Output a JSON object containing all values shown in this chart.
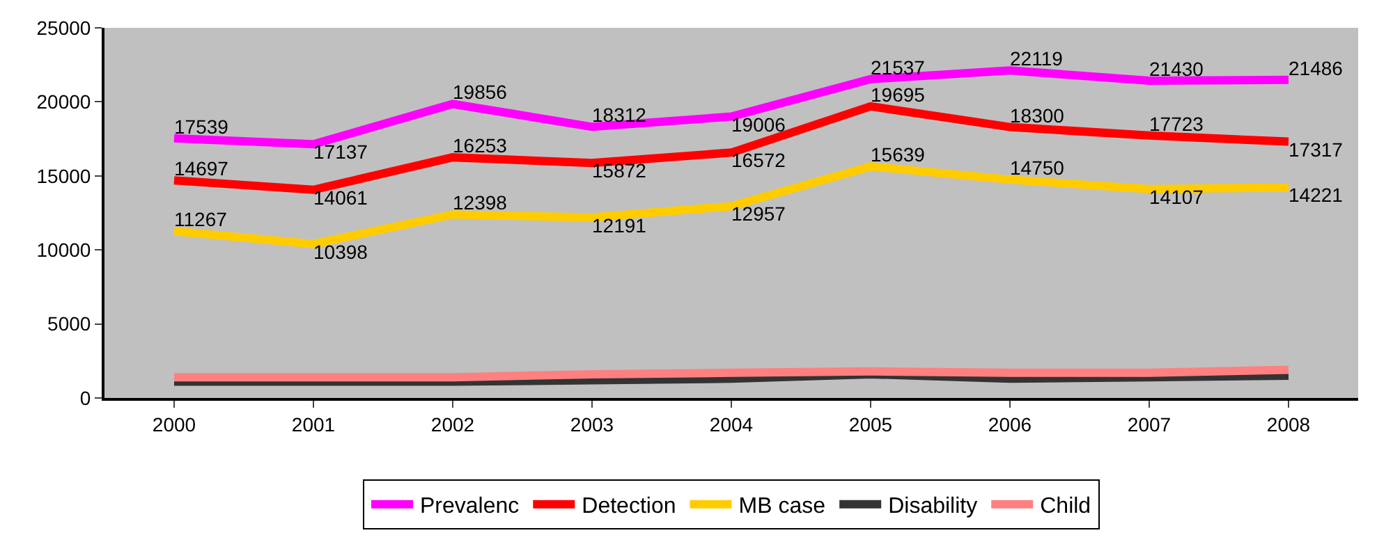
{
  "chart_data": {
    "type": "line",
    "categories": [
      "2000",
      "2001",
      "2002",
      "2003",
      "2004",
      "2005",
      "2006",
      "2007",
      "2008"
    ],
    "ylim": [
      0,
      25000
    ],
    "yticks": [
      0,
      5000,
      10000,
      15000,
      20000,
      25000
    ],
    "grid": false,
    "legend": "bottom",
    "marker": "none",
    "line_style": "solid",
    "series": [
      {
        "name": "Prevalenc",
        "color": "#ff00ff",
        "values": [
          17539,
          17137,
          19856,
          18312,
          19006,
          21537,
          22119,
          21430,
          21486
        ],
        "value_labels": [
          "17539",
          "17137",
          "19856",
          "18312",
          "19006",
          "21537",
          "22119",
          "21430",
          "21486"
        ]
      },
      {
        "name": "Detection",
        "color": "#ff0000",
        "values": [
          14697,
          14061,
          16253,
          15872,
          16572,
          19695,
          18300,
          17723,
          17317
        ],
        "value_labels": [
          "14697",
          "14061",
          "16253",
          "15872",
          "16572",
          "19695",
          "18300",
          "17723",
          "17317"
        ]
      },
      {
        "name": "MB case",
        "color": "#ffcc00",
        "values": [
          11267,
          10398,
          12398,
          12191,
          12957,
          15639,
          14750,
          14107,
          14221
        ],
        "value_labels": [
          "11267",
          "10398",
          "12398",
          "12191",
          "12957",
          "15639",
          "14750",
          "14107",
          "14221"
        ]
      },
      {
        "name": "Disability",
        "color": "#333333",
        "values": [
          1100,
          1100,
          1100,
          1200,
          1300,
          1600,
          1300,
          1400,
          1500
        ]
      },
      {
        "name": "Child",
        "color": "#ff8080",
        "values": [
          1400,
          1400,
          1400,
          1600,
          1700,
          1800,
          1700,
          1700,
          1900
        ]
      }
    ]
  }
}
